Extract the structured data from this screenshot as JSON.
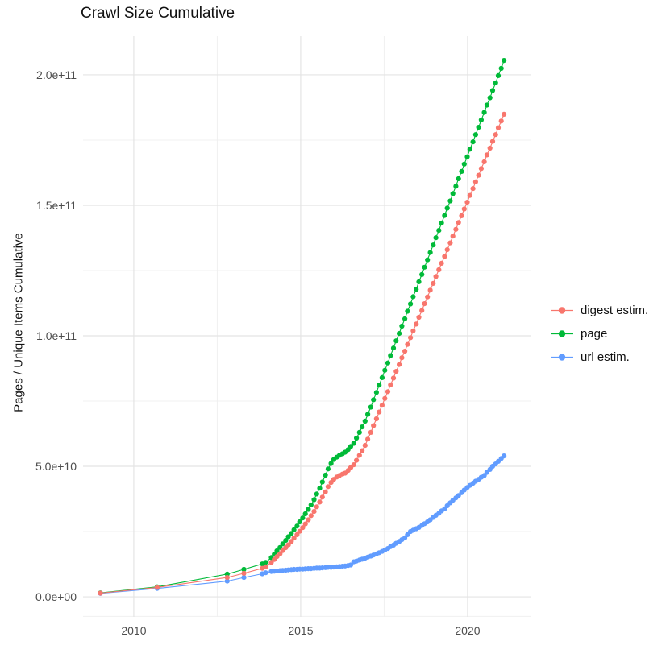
{
  "chart_data": {
    "type": "scatter",
    "title": "Crawl Size Cumulative",
    "xlabel": "",
    "ylabel": "Pages / Unique Items Cumulative",
    "value_unit": "1e9 pages (values below are in billions)",
    "grid": "on",
    "legend_position": "right",
    "axes": {
      "x": {
        "range": [
          2008.48,
          2021.91
        ],
        "ticks": [
          {
            "v": 2010,
            "label": "2010"
          },
          {
            "v": 2015,
            "label": "2015"
          },
          {
            "v": 2020,
            "label": "2020"
          }
        ],
        "minor": [
          2012.5,
          2017.5
        ]
      },
      "y": {
        "range": [
          -7.7,
          214.8
        ],
        "ticks": [
          {
            "v": 0,
            "label": "0.0e+00"
          },
          {
            "v": 50,
            "label": "5.0e+10"
          },
          {
            "v": 100,
            "label": "1.0e+11"
          },
          {
            "v": 150,
            "label": "1.5e+11"
          },
          {
            "v": 200,
            "label": "2.0e+11"
          }
        ],
        "minor": [
          -7.5,
          25,
          75,
          125,
          175
        ]
      }
    },
    "draw_order": [
      "page",
      "url estim.",
      "digest estim."
    ],
    "series": [
      {
        "name": "digest estim.",
        "color": "#F8766D",
        "points": [
          [
            2009.0,
            1.4
          ],
          [
            2010.7,
            3.6
          ],
          [
            2012.8,
            7.4
          ],
          [
            2013.3,
            9.0
          ],
          [
            2013.85,
            10.9
          ],
          [
            2013.95,
            11.5
          ],
          [
            2014.12,
            13.2
          ],
          [
            2014.21,
            14.3
          ],
          [
            2014.29,
            15.4
          ],
          [
            2014.38,
            16.5
          ],
          [
            2014.46,
            17.7
          ],
          [
            2014.55,
            18.8
          ],
          [
            2014.63,
            19.9
          ],
          [
            2014.72,
            21.2
          ],
          [
            2014.8,
            22.5
          ],
          [
            2014.89,
            23.8
          ],
          [
            2014.97,
            25.1
          ],
          [
            2015.06,
            26.5
          ],
          [
            2015.14,
            27.9
          ],
          [
            2015.23,
            29.5
          ],
          [
            2015.31,
            31.1
          ],
          [
            2015.4,
            32.7
          ],
          [
            2015.48,
            34.5
          ],
          [
            2015.57,
            36.3
          ],
          [
            2015.65,
            38.2
          ],
          [
            2015.74,
            40.2
          ],
          [
            2015.82,
            42.2
          ],
          [
            2015.91,
            43.8
          ],
          [
            2015.99,
            45.0
          ],
          [
            2016.08,
            45.9
          ],
          [
            2016.16,
            46.5
          ],
          [
            2016.25,
            47.0
          ],
          [
            2016.33,
            47.4
          ],
          [
            2016.42,
            48.4
          ],
          [
            2016.5,
            49.5
          ],
          [
            2016.59,
            50.6
          ],
          [
            2016.67,
            52.3
          ],
          [
            2016.76,
            54.2
          ],
          [
            2016.84,
            56.0
          ],
          [
            2016.93,
            58.0
          ],
          [
            2017.01,
            60.4
          ],
          [
            2017.1,
            63.0
          ],
          [
            2017.18,
            65.6
          ],
          [
            2017.27,
            68.2
          ],
          [
            2017.35,
            70.8
          ],
          [
            2017.44,
            73.4
          ],
          [
            2017.52,
            76.0
          ],
          [
            2017.61,
            78.6
          ],
          [
            2017.69,
            81.2
          ],
          [
            2017.78,
            83.8
          ],
          [
            2017.86,
            86.4
          ],
          [
            2017.95,
            89.0
          ],
          [
            2018.03,
            91.6
          ],
          [
            2018.12,
            94.1
          ],
          [
            2018.2,
            96.7
          ],
          [
            2018.29,
            99.3
          ],
          [
            2018.37,
            101.9
          ],
          [
            2018.46,
            104.5
          ],
          [
            2018.54,
            107.1
          ],
          [
            2018.63,
            109.7
          ],
          [
            2018.71,
            112.3
          ],
          [
            2018.8,
            114.9
          ],
          [
            2018.88,
            117.5
          ],
          [
            2018.97,
            120.1
          ],
          [
            2019.05,
            122.7
          ],
          [
            2019.14,
            125.3
          ],
          [
            2019.22,
            127.8
          ],
          [
            2019.31,
            130.4
          ],
          [
            2019.39,
            133.0
          ],
          [
            2019.48,
            135.6
          ],
          [
            2019.56,
            138.2
          ],
          [
            2019.65,
            140.8
          ],
          [
            2019.73,
            143.4
          ],
          [
            2019.82,
            146.0
          ],
          [
            2019.9,
            148.6
          ],
          [
            2019.99,
            151.2
          ],
          [
            2020.07,
            153.8
          ],
          [
            2020.16,
            156.4
          ],
          [
            2020.24,
            159.0
          ],
          [
            2020.33,
            161.5
          ],
          [
            2020.41,
            164.1
          ],
          [
            2020.5,
            166.7
          ],
          [
            2020.58,
            169.3
          ],
          [
            2020.67,
            171.9
          ],
          [
            2020.75,
            174.5
          ],
          [
            2020.84,
            177.1
          ],
          [
            2020.92,
            179.7
          ],
          [
            2021.01,
            182.3
          ],
          [
            2021.09,
            184.9
          ]
        ]
      },
      {
        "name": "page",
        "color": "#00BA38",
        "points": [
          [
            2009.0,
            1.5
          ],
          [
            2010.7,
            3.8
          ],
          [
            2012.8,
            8.7
          ],
          [
            2013.3,
            10.5
          ],
          [
            2013.85,
            12.6
          ],
          [
            2013.95,
            13.2
          ],
          [
            2014.12,
            15.0
          ],
          [
            2014.21,
            16.3
          ],
          [
            2014.29,
            17.6
          ],
          [
            2014.38,
            18.9
          ],
          [
            2014.46,
            20.3
          ],
          [
            2014.55,
            21.6
          ],
          [
            2014.63,
            23.0
          ],
          [
            2014.72,
            24.3
          ],
          [
            2014.8,
            25.7
          ],
          [
            2014.89,
            27.1
          ],
          [
            2014.97,
            28.7
          ],
          [
            2015.06,
            30.2
          ],
          [
            2015.14,
            31.8
          ],
          [
            2015.23,
            33.5
          ],
          [
            2015.31,
            35.2
          ],
          [
            2015.4,
            37.2
          ],
          [
            2015.48,
            39.4
          ],
          [
            2015.57,
            41.6
          ],
          [
            2015.65,
            44.0
          ],
          [
            2015.74,
            46.6
          ],
          [
            2015.82,
            49.0
          ],
          [
            2015.91,
            51.1
          ],
          [
            2015.99,
            52.6
          ],
          [
            2016.08,
            53.5
          ],
          [
            2016.16,
            54.2
          ],
          [
            2016.25,
            54.8
          ],
          [
            2016.33,
            55.4
          ],
          [
            2016.42,
            56.4
          ],
          [
            2016.5,
            57.6
          ],
          [
            2016.59,
            58.8
          ],
          [
            2016.67,
            60.8
          ],
          [
            2016.76,
            63.0
          ],
          [
            2016.84,
            65.1
          ],
          [
            2016.93,
            67.3
          ],
          [
            2017.01,
            69.9
          ],
          [
            2017.1,
            72.7
          ],
          [
            2017.18,
            75.5
          ],
          [
            2017.27,
            78.3
          ],
          [
            2017.35,
            81.1
          ],
          [
            2017.44,
            84.0
          ],
          [
            2017.52,
            86.8
          ],
          [
            2017.61,
            89.6
          ],
          [
            2017.69,
            92.4
          ],
          [
            2017.78,
            95.3
          ],
          [
            2017.86,
            98.1
          ],
          [
            2017.95,
            100.9
          ],
          [
            2018.03,
            103.7
          ],
          [
            2018.12,
            106.5
          ],
          [
            2018.2,
            109.4
          ],
          [
            2018.29,
            112.2
          ],
          [
            2018.37,
            115.0
          ],
          [
            2018.46,
            117.8
          ],
          [
            2018.54,
            120.7
          ],
          [
            2018.63,
            123.5
          ],
          [
            2018.71,
            126.3
          ],
          [
            2018.8,
            129.1
          ],
          [
            2018.88,
            131.9
          ],
          [
            2018.97,
            134.8
          ],
          [
            2019.05,
            137.6
          ],
          [
            2019.14,
            140.4
          ],
          [
            2019.22,
            143.2
          ],
          [
            2019.31,
            146.1
          ],
          [
            2019.39,
            148.9
          ],
          [
            2019.48,
            151.7
          ],
          [
            2019.56,
            154.5
          ],
          [
            2019.65,
            157.3
          ],
          [
            2019.73,
            160.2
          ],
          [
            2019.82,
            163.0
          ],
          [
            2019.9,
            165.8
          ],
          [
            2019.99,
            168.6
          ],
          [
            2020.07,
            171.5
          ],
          [
            2020.16,
            174.3
          ],
          [
            2020.24,
            177.1
          ],
          [
            2020.33,
            179.9
          ],
          [
            2020.41,
            182.7
          ],
          [
            2020.5,
            185.6
          ],
          [
            2020.58,
            188.4
          ],
          [
            2020.67,
            191.2
          ],
          [
            2020.75,
            194.0
          ],
          [
            2020.84,
            196.9
          ],
          [
            2020.92,
            199.7
          ],
          [
            2021.01,
            202.5
          ],
          [
            2021.09,
            205.5
          ]
        ]
      },
      {
        "name": "url estim.",
        "color": "#619CFF",
        "points": [
          [
            2009.0,
            1.3
          ],
          [
            2010.7,
            3.2
          ],
          [
            2012.8,
            6.0
          ],
          [
            2013.3,
            7.4
          ],
          [
            2013.85,
            8.8
          ],
          [
            2013.95,
            9.2
          ],
          [
            2014.12,
            9.7
          ],
          [
            2014.21,
            9.8
          ],
          [
            2014.29,
            9.9
          ],
          [
            2014.38,
            10.0
          ],
          [
            2014.46,
            10.1
          ],
          [
            2014.55,
            10.2
          ],
          [
            2014.63,
            10.3
          ],
          [
            2014.72,
            10.4
          ],
          [
            2014.8,
            10.5
          ],
          [
            2014.89,
            10.5
          ],
          [
            2014.97,
            10.6
          ],
          [
            2015.06,
            10.6
          ],
          [
            2015.14,
            10.7
          ],
          [
            2015.23,
            10.8
          ],
          [
            2015.31,
            10.8
          ],
          [
            2015.4,
            10.9
          ],
          [
            2015.48,
            11.0
          ],
          [
            2015.57,
            11.0
          ],
          [
            2015.65,
            11.1
          ],
          [
            2015.74,
            11.2
          ],
          [
            2015.82,
            11.3
          ],
          [
            2015.91,
            11.3
          ],
          [
            2015.99,
            11.4
          ],
          [
            2016.08,
            11.5
          ],
          [
            2016.16,
            11.6
          ],
          [
            2016.25,
            11.7
          ],
          [
            2016.33,
            11.8
          ],
          [
            2016.42,
            12.0
          ],
          [
            2016.5,
            12.2
          ],
          [
            2016.59,
            13.4
          ],
          [
            2016.67,
            13.7
          ],
          [
            2016.76,
            14.1
          ],
          [
            2016.84,
            14.4
          ],
          [
            2016.93,
            14.8
          ],
          [
            2017.01,
            15.2
          ],
          [
            2017.1,
            15.6
          ],
          [
            2017.18,
            16.0
          ],
          [
            2017.27,
            16.4
          ],
          [
            2017.35,
            16.9
          ],
          [
            2017.44,
            17.4
          ],
          [
            2017.52,
            17.9
          ],
          [
            2017.61,
            18.5
          ],
          [
            2017.69,
            19.2
          ],
          [
            2017.78,
            19.8
          ],
          [
            2017.86,
            20.5
          ],
          [
            2017.95,
            21.2
          ],
          [
            2018.03,
            21.9
          ],
          [
            2018.12,
            22.6
          ],
          [
            2018.2,
            23.8
          ],
          [
            2018.29,
            25.0
          ],
          [
            2018.37,
            25.5
          ],
          [
            2018.46,
            26.1
          ],
          [
            2018.54,
            26.6
          ],
          [
            2018.63,
            27.3
          ],
          [
            2018.71,
            28.0
          ],
          [
            2018.8,
            28.7
          ],
          [
            2018.88,
            29.5
          ],
          [
            2018.97,
            30.4
          ],
          [
            2019.05,
            31.2
          ],
          [
            2019.14,
            32.0
          ],
          [
            2019.22,
            32.9
          ],
          [
            2019.31,
            33.7
          ],
          [
            2019.39,
            34.9
          ],
          [
            2019.48,
            36.0
          ],
          [
            2019.56,
            37.0
          ],
          [
            2019.65,
            37.9
          ],
          [
            2019.73,
            38.8
          ],
          [
            2019.82,
            39.9
          ],
          [
            2019.9,
            40.9
          ],
          [
            2019.99,
            41.9
          ],
          [
            2020.07,
            42.7
          ],
          [
            2020.16,
            43.5
          ],
          [
            2020.24,
            44.3
          ],
          [
            2020.33,
            45.0
          ],
          [
            2020.41,
            45.8
          ],
          [
            2020.5,
            46.5
          ],
          [
            2020.58,
            47.7
          ],
          [
            2020.67,
            48.8
          ],
          [
            2020.75,
            50.0
          ],
          [
            2020.84,
            50.9
          ],
          [
            2020.92,
            51.9
          ],
          [
            2021.01,
            53.0
          ],
          [
            2021.09,
            54.0
          ]
        ]
      }
    ],
    "colors": {
      "background": "#ffffff",
      "grid_major": "#e4e4e4",
      "grid_minor": "#f0f0f0",
      "tick_label": "#4d4d4d",
      "text": "#111111"
    }
  }
}
